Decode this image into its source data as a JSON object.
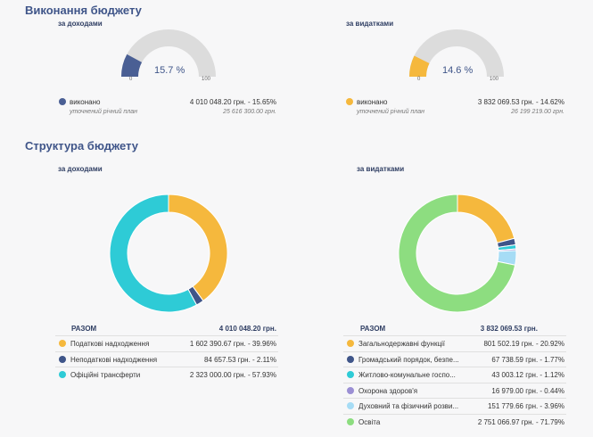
{
  "execution": {
    "title": "Виконання бюджету",
    "income": {
      "subtitle": "за доходами",
      "percent_label": "15.7 %",
      "percent": 15.7,
      "min": "0",
      "max": "100",
      "color": "#4a5f94",
      "legend": "виконано",
      "value": "4 010 048.20 грн.  - 15.65%",
      "plan_label": "уточнений річний план",
      "plan_value": "25 616 300.00 грн."
    },
    "expense": {
      "subtitle": "за видатками",
      "percent_label": "14.6 %",
      "percent": 14.6,
      "min": "0",
      "max": "100",
      "color": "#f5b83d",
      "legend": "виконано",
      "value": "3 832 069.53 грн.  - 14.62%",
      "plan_label": "уточнений річний план",
      "plan_value": "26 199 219.00 грн."
    }
  },
  "structure": {
    "title": "Структура бюджету",
    "income": {
      "subtitle": "за доходами",
      "total_label": "РАЗОМ",
      "total_value": "4 010 048.20 грн.",
      "items": [
        {
          "label": "Податкові надходження",
          "value": "1 602 390.67 грн.  - 39.96%",
          "percent": 39.96,
          "color": "#f5b83d"
        },
        {
          "label": "Неподаткові надходження",
          "value": "84 657.53 грн.  -   2.11%",
          "percent": 2.11,
          "color": "#3f5589"
        },
        {
          "label": "Офіційні трансферти",
          "value": "2 323 000.00 грн.  - 57.93%",
          "percent": 57.93,
          "color": "#2ecbd6"
        }
      ]
    },
    "expense": {
      "subtitle": "за видатками",
      "total_label": "РАЗОМ",
      "total_value": "3 832 069.53 грн.",
      "items": [
        {
          "label": "Загальнодержавні функції",
          "value": "801 502.19 грн.  - 20.92%",
          "percent": 20.92,
          "color": "#f5b83d"
        },
        {
          "label": "Громадський порядок, безпе...",
          "value": "67 738.59 грн.  -   1.77%",
          "percent": 1.77,
          "color": "#3f5589"
        },
        {
          "label": "Житлово-комунальне госпо...",
          "value": "43 003.12 грн.  -   1.12%",
          "percent": 1.12,
          "color": "#2ecbd6"
        },
        {
          "label": "Охорона здоров'я",
          "value": "16 979.00 грн.  -   0.44%",
          "percent": 0.44,
          "color": "#9b8fd4"
        },
        {
          "label": "Духовний та фізичний розви...",
          "value": "151 779.66 грн.  -   3.96%",
          "percent": 3.96,
          "color": "#a6dcf5"
        },
        {
          "label": "Освіта",
          "value": "2 751 066.97 грн.  - 71.79%",
          "percent": 71.79,
          "color": "#8ddd80"
        }
      ]
    }
  }
}
